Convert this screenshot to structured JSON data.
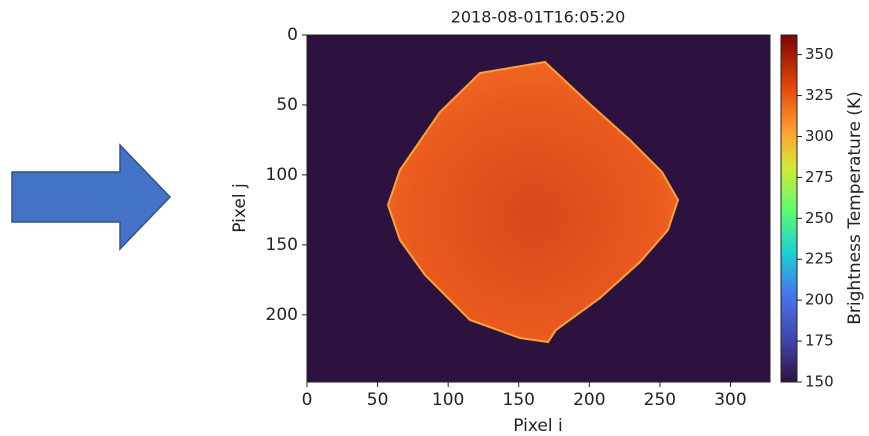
{
  "chart_data": {
    "type": "image",
    "title": "2018-08-01T16:05:20",
    "xlabel": "Pixel i",
    "ylabel": "Pixel j",
    "xlim": [
      0,
      328
    ],
    "xticks": [
      0,
      50,
      100,
      150,
      200,
      250,
      300
    ],
    "ylim": [
      248,
      0
    ],
    "yticks": [
      0,
      50,
      100,
      150,
      200
    ],
    "colorbar_label": "Brightness Temperature (K)",
    "clim": [
      150,
      362
    ],
    "cticks": [
      150,
      175,
      200,
      225,
      250,
      275,
      300,
      325,
      350
    ]
  }
}
